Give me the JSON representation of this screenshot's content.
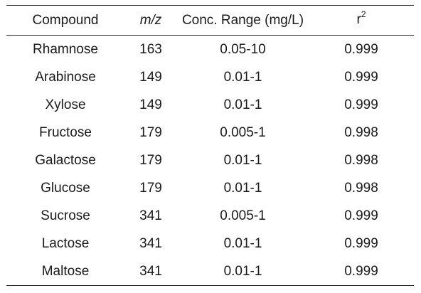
{
  "table": {
    "headers": {
      "compound": "Compound",
      "mz": "m/z",
      "range": "Conc. Range (mg/L)",
      "r2_base": "r",
      "r2_sup": "2"
    },
    "rows": [
      {
        "compound": "Rhamnose",
        "mz": "163",
        "range": "0.05-10",
        "r2": "0.999"
      },
      {
        "compound": "Arabinose",
        "mz": "149",
        "range": "0.01-1",
        "r2": "0.999"
      },
      {
        "compound": "Xylose",
        "mz": "149",
        "range": "0.01-1",
        "r2": "0.999"
      },
      {
        "compound": "Fructose",
        "mz": "179",
        "range": "0.005-1",
        "r2": "0.998"
      },
      {
        "compound": "Galactose",
        "mz": "179",
        "range": "0.01-1",
        "r2": "0.998"
      },
      {
        "compound": "Glucose",
        "mz": "179",
        "range": "0.01-1",
        "r2": "0.998"
      },
      {
        "compound": "Sucrose",
        "mz": "341",
        "range": "0.005-1",
        "r2": "0.999"
      },
      {
        "compound": "Lactose",
        "mz": "341",
        "range": "0.01-1",
        "r2": "0.999"
      },
      {
        "compound": "Maltose",
        "mz": "341",
        "range": "0.01-1",
        "r2": "0.999"
      }
    ]
  }
}
